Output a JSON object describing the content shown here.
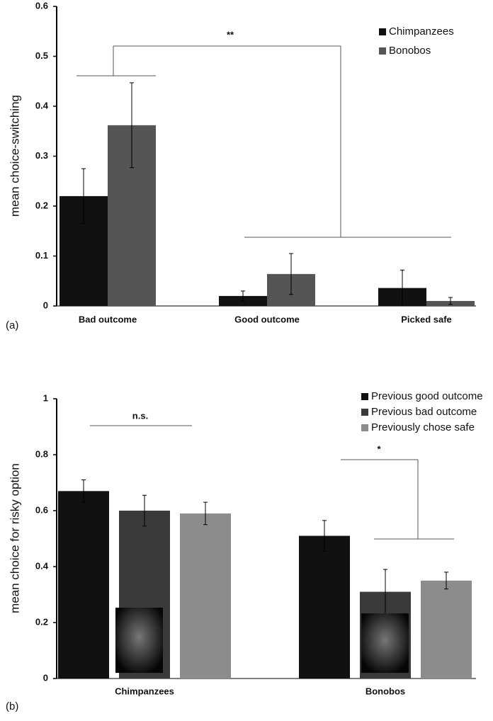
{
  "chart_data": [
    {
      "type": "bar",
      "panel_label": "(a)",
      "ylabel": "mean choice-switching",
      "categories": [
        "Bad outcome",
        "Good outcome",
        "Picked safe"
      ],
      "series": [
        {
          "name": "Chimpanzees",
          "color": "#111111",
          "values": [
            0.22,
            0.02,
            0.036
          ],
          "errors": [
            0.055,
            0.01,
            0.036
          ]
        },
        {
          "name": "Bonobos",
          "color": "#555555",
          "values": [
            0.362,
            0.064,
            0.01
          ],
          "errors": [
            0.085,
            0.041,
            0.007
          ]
        }
      ],
      "ylim": [
        0,
        0.6
      ],
      "yticks": [
        0,
        0.1,
        0.2,
        0.3,
        0.4,
        0.5,
        0.6
      ],
      "annotations": [
        "**"
      ]
    },
    {
      "type": "bar",
      "panel_label": "(b)",
      "ylabel": "mean choice for risky option",
      "categories": [
        "Chimpanzees",
        "Bonobos"
      ],
      "series": [
        {
          "name": "Previous good outcome",
          "color": "#111111",
          "values": [
            0.67,
            0.51
          ],
          "errors": [
            0.04,
            0.055
          ]
        },
        {
          "name": "Previous bad outcome",
          "color": "#3a3a3a",
          "values": [
            0.6,
            0.31
          ],
          "errors": [
            0.055,
            0.08
          ]
        },
        {
          "name": "Previously chose safe",
          "color": "#8c8c8c",
          "values": [
            0.59,
            0.35
          ],
          "errors": [
            0.04,
            0.03
          ]
        }
      ],
      "ylim": [
        0,
        1
      ],
      "yticks": [
        0,
        0.2,
        0.4,
        0.6,
        0.8,
        1
      ],
      "annotations": [
        "n.s.",
        "*"
      ]
    }
  ]
}
